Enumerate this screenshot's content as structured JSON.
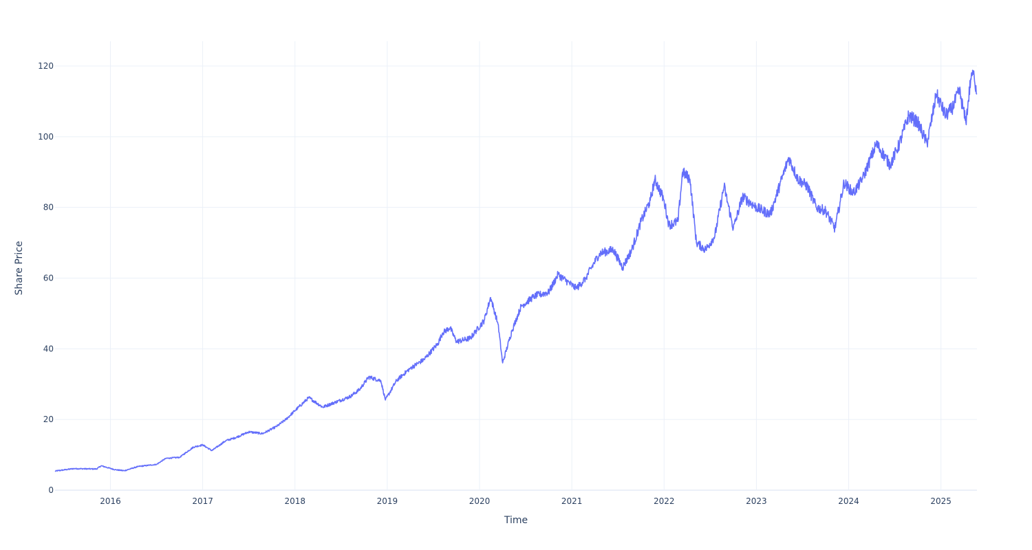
{
  "chart_data": {
    "type": "line",
    "title": "",
    "xlabel": "Time",
    "ylabel": "Share Price",
    "grid": true,
    "line_color": "#636efa",
    "xlim": [
      2015.4,
      2025.39
    ],
    "ylim": [
      0,
      127
    ],
    "x_ticks": [
      2016,
      2017,
      2018,
      2019,
      2020,
      2021,
      2022,
      2023,
      2024,
      2025
    ],
    "x_tick_labels": [
      "2016",
      "2017",
      "2018",
      "2019",
      "2020",
      "2021",
      "2022",
      "2023",
      "2024",
      "2025"
    ],
    "y_ticks": [
      0,
      20,
      40,
      60,
      80,
      100,
      120
    ],
    "y_tick_labels": [
      "0",
      "20",
      "40",
      "60",
      "80",
      "100",
      "120"
    ],
    "series": [
      {
        "name": "Share Price",
        "x": [
          2015.4,
          2015.6,
          2015.85,
          2015.9,
          2016.05,
          2016.15,
          2016.3,
          2016.5,
          2016.6,
          2016.75,
          2016.9,
          2017.0,
          2017.1,
          2017.25,
          2017.35,
          2017.5,
          2017.65,
          2017.8,
          2017.9,
          2018.0,
          2018.15,
          2018.3,
          2018.45,
          2018.6,
          2018.7,
          2018.8,
          2018.93,
          2018.98,
          2019.1,
          2019.25,
          2019.4,
          2019.55,
          2019.6,
          2019.68,
          2019.75,
          2019.9,
          2020.05,
          2020.12,
          2020.2,
          2020.25,
          2020.35,
          2020.45,
          2020.6,
          2020.75,
          2020.85,
          2020.95,
          2021.05,
          2021.15,
          2021.3,
          2021.45,
          2021.55,
          2021.65,
          2021.75,
          2021.85,
          2021.9,
          2022.0,
          2022.05,
          2022.15,
          2022.2,
          2022.28,
          2022.35,
          2022.45,
          2022.55,
          2022.65,
          2022.75,
          2022.85,
          2023.0,
          2023.15,
          2023.25,
          2023.35,
          2023.45,
          2023.55,
          2023.65,
          2023.75,
          2023.85,
          2023.95,
          2024.05,
          2024.15,
          2024.3,
          2024.45,
          2024.55,
          2024.65,
          2024.75,
          2024.85,
          2024.95,
          2025.05,
          2025.12,
          2025.2,
          2025.27,
          2025.33,
          2025.36,
          2025.39
        ],
        "y": [
          5.4,
          6.1,
          6.0,
          6.9,
          5.8,
          5.5,
          6.7,
          7.3,
          9.0,
          9.3,
          12.2,
          12.8,
          11.2,
          14.0,
          14.8,
          16.5,
          16.0,
          18.0,
          20.0,
          22.5,
          26.2,
          23.5,
          25.0,
          26.5,
          28.5,
          32.0,
          31.0,
          25.5,
          31.0,
          34.5,
          37.0,
          41.5,
          44.5,
          46.0,
          42.0,
          43.0,
          48.0,
          54.5,
          47.0,
          36.0,
          45.0,
          52.0,
          55.0,
          56.0,
          61.0,
          59.0,
          57.0,
          60.0,
          67.0,
          68.0,
          63.0,
          68.0,
          76.0,
          82.0,
          88.0,
          82.0,
          75.0,
          76.0,
          90.0,
          88.0,
          70.0,
          68.0,
          72.0,
          86.0,
          74.0,
          83.0,
          80.0,
          78.0,
          86.0,
          94.0,
          88.0,
          86.0,
          80.0,
          79.0,
          74.0,
          87.0,
          84.0,
          88.0,
          98.0,
          92.0,
          98.0,
          106.0,
          104.0,
          98.0,
          112.0,
          106.0,
          108.0,
          113.0,
          104.0,
          118.0,
          117.0,
          112.0
        ]
      }
    ]
  }
}
